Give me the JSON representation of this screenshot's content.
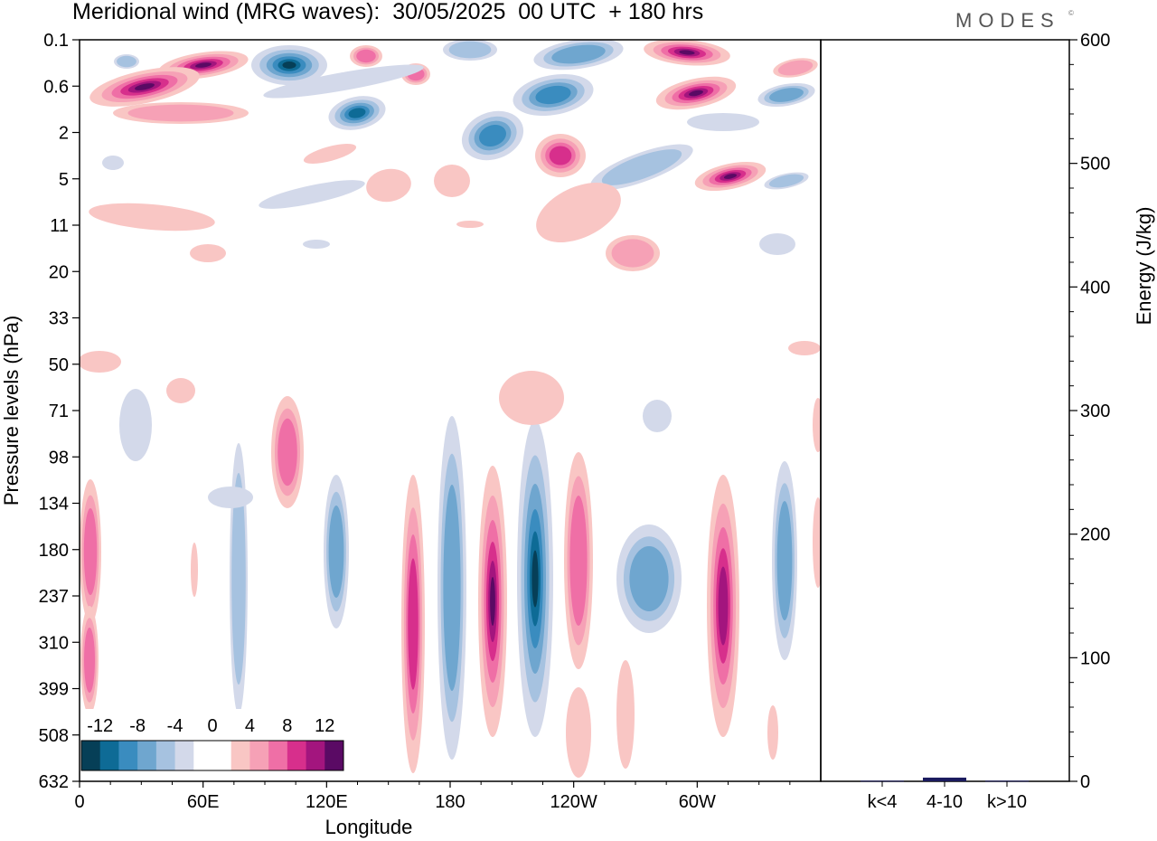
{
  "title": "Meridional wind (MRG waves):  30/05/2025  00 UTC  + 180 hrs",
  "logo": "MODES",
  "logo_mark": "©",
  "colors": {
    "neg": [
      "#063f57",
      "#0e6b96",
      "#3a8cbf",
      "#6fa6cf",
      "#a6c2e0",
      "#d3d9ea"
    ],
    "pos": [
      "#f9c6c4",
      "#f6a1b6",
      "#ef6fa6",
      "#d72f8c",
      "#a3157e",
      "#5a0a64"
    ],
    "energy_bar": "#1a1a5e"
  },
  "chart_data": [
    {
      "type": "heatmap",
      "title": "Meridional wind (MRG waves):  30/05/2025  00 UTC  + 180 hrs",
      "xlabel": "Longitude",
      "ylabel": "Pressure levels (hPa)",
      "x_ticks": [
        "0",
        "60E",
        "120E",
        "180",
        "120W",
        "60W"
      ],
      "y_ticks": [
        "0.1",
        "0.6",
        "2",
        "5",
        "11",
        "20",
        "33",
        "50",
        "71",
        "98",
        "134",
        "180",
        "237",
        "310",
        "399",
        "508",
        "632"
      ],
      "colorbar": {
        "labels": [
          "-12",
          "-8",
          "-4",
          "0",
          "4",
          "8",
          "12"
        ],
        "levels": [
          -14,
          -12,
          -10,
          -8,
          -6,
          -4,
          -2,
          2,
          4,
          6,
          8,
          10,
          12,
          14
        ]
      },
      "features": [
        {
          "lon": 195,
          "level": "180",
          "sign": "positive",
          "max": 14
        },
        {
          "lon": 220,
          "level": "180",
          "sign": "negative",
          "min": -14
        },
        {
          "lon": 163,
          "level": "237",
          "sign": "positive",
          "max": 10
        },
        {
          "lon": 300,
          "level": "237",
          "sign": "positive",
          "max": 12
        },
        {
          "lon": 100,
          "level": "0.3",
          "sign": "negative",
          "min": -14
        },
        {
          "lon": 30,
          "level": "0.6",
          "sign": "positive",
          "max": 14
        },
        {
          "lon": 290,
          "level": "0.6",
          "sign": "positive",
          "max": 14
        }
      ]
    },
    {
      "type": "bar",
      "ylabel": "Energy (J/kg)",
      "categories": [
        "k<4",
        "4-10",
        "k>10"
      ],
      "values": [
        0.5,
        3,
        0.5
      ],
      "ylim": [
        0,
        600
      ],
      "y_ticks": [
        "0",
        "100",
        "200",
        "300",
        "400",
        "500",
        "600"
      ]
    }
  ]
}
